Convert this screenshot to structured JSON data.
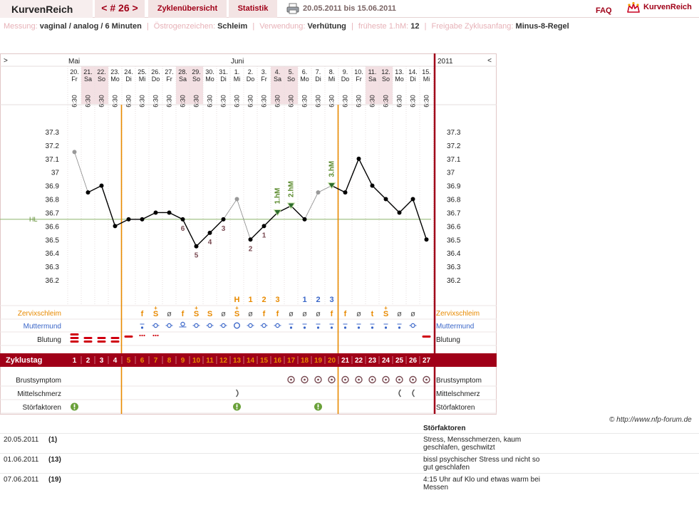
{
  "header": {
    "brand": "KurvenReich",
    "cycle_number": "< # 26 >",
    "tab_overview": "Zyklenübersicht",
    "tab_stats": "Statistik",
    "date_range": "20.05.2011 bis 15.06.2011",
    "faq": "FAQ",
    "logo_text": "KurvenReich"
  },
  "info": {
    "messung_label": "Messung:",
    "messung_value": "vaginal / analog / 6 Minuten",
    "oestrogen_label": "Östrogenzeichen:",
    "oestrogen_value": "Schleim",
    "verwendung_label": "Verwendung:",
    "verwendung_value": "Verhütung",
    "frueheste_label": "früheste 1.hM:",
    "frueheste_value": "12",
    "freigabe_label": "Freigabe Zyklusanfang:",
    "freigabe_value": "Minus-8-Regel"
  },
  "chart_data": {
    "type": "line",
    "nav_prev": ">",
    "nav_next": "<",
    "year_label": "2011",
    "months": [
      {
        "label": "Mai",
        "start_index": 0
      },
      {
        "label": "Juni",
        "start_index": 12
      }
    ],
    "dates": [
      "20.",
      "21.",
      "22.",
      "23.",
      "24.",
      "25.",
      "26.",
      "27.",
      "28.",
      "29.",
      "30.",
      "31.",
      "1.",
      "2.",
      "3.",
      "4.",
      "5.",
      "6.",
      "7.",
      "8.",
      "9.",
      "10.",
      "11.",
      "12.",
      "13.",
      "14.",
      "15."
    ],
    "weekdays": [
      "Fr",
      "Sa",
      "So",
      "Mo",
      "Di",
      "Mi",
      "Do",
      "Fr",
      "Sa",
      "So",
      "Mo",
      "Di",
      "Mi",
      "Do",
      "Fr",
      "Sa",
      "So",
      "Mo",
      "Di",
      "Mi",
      "Do",
      "Fr",
      "Sa",
      "So",
      "Mo",
      "Di",
      "Mi"
    ],
    "weekend": [
      false,
      true,
      true,
      false,
      false,
      false,
      false,
      false,
      true,
      true,
      false,
      false,
      false,
      false,
      false,
      true,
      true,
      false,
      false,
      false,
      false,
      false,
      true,
      true,
      false,
      false,
      false
    ],
    "times": [
      "6:30",
      "6:30",
      "6:30",
      "6:30",
      "6:30",
      "6:30",
      "6:30",
      "6:30",
      "6:30",
      "6:30",
      "6:30",
      "6:30",
      "6:30",
      "6:30",
      "6:30",
      "6:30",
      "6:30",
      "6:30",
      "6:30",
      "6:30",
      "6:30",
      "6:30",
      "6:30",
      "6:30",
      "6:30",
      "6:30",
      "6:30"
    ],
    "temperatures": [
      37.15,
      36.85,
      36.9,
      36.6,
      36.65,
      36.65,
      36.7,
      36.7,
      36.65,
      36.45,
      36.55,
      36.65,
      36.8,
      36.5,
      36.6,
      36.7,
      36.75,
      36.65,
      36.85,
      36.9,
      36.85,
      37.1,
      36.9,
      36.8,
      36.7,
      36.8,
      36.5
    ],
    "excluded": [
      true,
      false,
      false,
      false,
      false,
      false,
      false,
      false,
      false,
      false,
      false,
      false,
      true,
      false,
      false,
      false,
      false,
      false,
      true,
      false,
      false,
      false,
      false,
      false,
      false,
      false,
      false
    ],
    "y_ticks": [
      "37.3",
      "37.2",
      "37.1",
      "37",
      "36.9",
      "36.8",
      "36.7",
      "36.6",
      "36.5",
      "36.4",
      "36.3",
      "36.2"
    ],
    "ylim": [
      36.2,
      37.3
    ],
    "coverline": 36.65,
    "coverline_label": "HL",
    "low_count_labels": [
      {
        "day": 8,
        "text": "6"
      },
      {
        "day": 9,
        "text": "5"
      },
      {
        "day": 10,
        "text": "4"
      },
      {
        "day": 11,
        "text": "3"
      },
      {
        "day": 13,
        "text": "2"
      },
      {
        "day": 14,
        "text": "1"
      }
    ],
    "high_labels": [
      {
        "day": 15,
        "text": "1.hM"
      },
      {
        "day": 16,
        "text": "2.hM"
      },
      {
        "day": 19,
        "text": "3.hM"
      }
    ],
    "vertical_lines_after_day": [
      3,
      19
    ],
    "mucus_peak_labels": [
      {
        "day": 12,
        "text": "H",
        "color": "#e88a00"
      },
      {
        "day": 13,
        "text": "1",
        "color": "#e88a00"
      },
      {
        "day": 14,
        "text": "2",
        "color": "#e88a00"
      },
      {
        "day": 15,
        "text": "3",
        "color": "#e88a00"
      },
      {
        "day": 17,
        "text": "1",
        "color": "#3a66c8"
      },
      {
        "day": 18,
        "text": "2",
        "color": "#3a66c8"
      },
      {
        "day": 19,
        "text": "3",
        "color": "#3a66c8"
      }
    ],
    "rows": {
      "zervixschleim_label": "Zervixschleim",
      "zervixschleim": [
        "",
        "",
        "",
        "",
        "",
        "f",
        "S+",
        "ø",
        "f",
        "S+",
        "S",
        "ø",
        "S+",
        "ø",
        "f",
        "f",
        "ø",
        "ø",
        "ø",
        "f",
        "f",
        "ø",
        "t",
        "S+",
        "ø",
        "ø",
        ""
      ],
      "muttermund_label": "Muttermund",
      "muttermund": [
        "",
        "",
        "",
        "",
        "",
        "low",
        "open",
        "open",
        "high",
        "open",
        "open",
        "open",
        "wide",
        "open",
        "open",
        "open",
        "low",
        "low",
        "low",
        "low",
        "low",
        "low",
        "low",
        "low",
        "low",
        "open",
        ""
      ],
      "blutung_label": "Blutung",
      "blutung": [
        "heavy",
        "strong",
        "strong",
        "strong",
        "medium",
        "spot",
        "spot",
        "",
        "",
        "",
        "",
        "",
        "",
        "",
        "",
        "",
        "",
        "",
        "",
        "",
        "",
        "",
        "",
        "",
        "",
        "",
        "medium"
      ],
      "zyklustag_label": "Zyklustag",
      "zyklustag": [
        "1",
        "2",
        "3",
        "4",
        "5",
        "6",
        "7",
        "8",
        "9",
        "10",
        "11",
        "12",
        "13",
        "14",
        "15",
        "16",
        "17",
        "18",
        "19",
        "20",
        "21",
        "22",
        "23",
        "24",
        "25",
        "26",
        "27"
      ],
      "brustsymptom_label": "Brustsymptom",
      "brustsymptom": [
        false,
        false,
        false,
        false,
        false,
        false,
        false,
        false,
        false,
        false,
        false,
        false,
        false,
        false,
        false,
        false,
        true,
        true,
        true,
        true,
        true,
        true,
        true,
        true,
        true,
        true,
        true
      ],
      "mittelschmerz_label": "Mittelschmerz",
      "mittelschmerz": [
        "",
        "",
        "",
        "",
        "",
        "",
        "",
        "",
        "",
        "",
        "",
        "",
        "right",
        "",
        "",
        "",
        "",
        "",
        "",
        "",
        "",
        "",
        "",
        "",
        "left",
        "left",
        ""
      ],
      "stoerfaktoren_label": "Störfaktoren",
      "stoerfaktoren": [
        true,
        false,
        false,
        false,
        false,
        false,
        false,
        false,
        false,
        false,
        false,
        false,
        true,
        false,
        false,
        false,
        false,
        false,
        true,
        false,
        false,
        false,
        false,
        false,
        false,
        false,
        false
      ]
    },
    "colors": {
      "accent": "#a00018",
      "orange": "#e88a00",
      "blue": "#3a66c8",
      "brown": "#7a4b53",
      "green": "#5a8a2c",
      "coverline": "#8bb36a",
      "weekend_bg": "#f3e0e3"
    }
  },
  "footer": {
    "copyright": "© http://www.nfp-forum.de",
    "notes_header": "Störfaktoren",
    "notes": [
      {
        "date": "20.05.2011",
        "day": "(1)",
        "text": "Stress, Mensschmerzen, kaum geschlafen, geschwitzt"
      },
      {
        "date": "01.06.2011",
        "day": "(13)",
        "text": "bissl psychischer Stress und nicht so gut geschlafen"
      },
      {
        "date": "07.06.2011",
        "day": "(19)",
        "text": "4:15 Uhr auf Klo und etwas warm bei Messen"
      }
    ]
  }
}
